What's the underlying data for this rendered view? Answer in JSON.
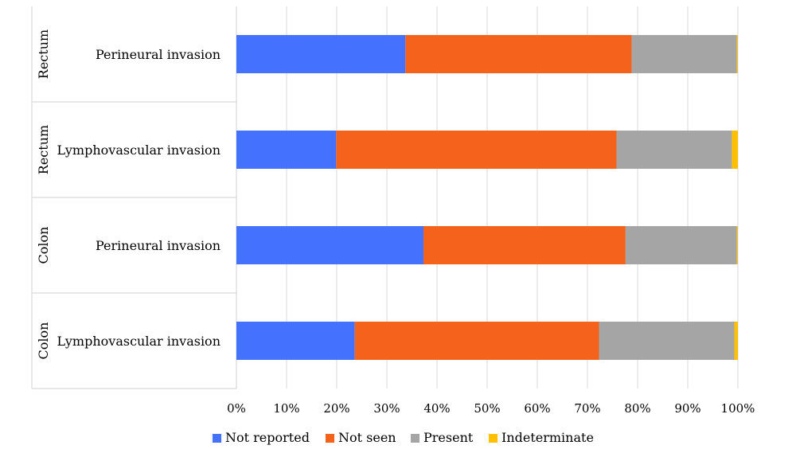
{
  "chart_data": {
    "type": "bar",
    "orientation": "horizontal",
    "stacked": "percent",
    "group_labels": [
      "Rectum",
      "Rectum",
      "Colon",
      "Colon"
    ],
    "categories": [
      "Perineural invasion",
      "Lymphovascular invasion",
      "Perineural invasion",
      "Lymphovascular invasion"
    ],
    "series": [
      {
        "name": "Not reported",
        "values": [
          33.7,
          19.9,
          37.3,
          23.6
        ]
      },
      {
        "name": "Not seen",
        "values": [
          45.1,
          55.9,
          40.3,
          48.7
        ]
      },
      {
        "name": "Present",
        "values": [
          21.0,
          23.0,
          22.2,
          27.0
        ]
      },
      {
        "name": "Indeterminate",
        "values": [
          0.2,
          1.2,
          0.2,
          0.7
        ]
      }
    ],
    "x_ticks": [
      "0%",
      "10%",
      "20%",
      "30%",
      "40%",
      "50%",
      "60%",
      "70%",
      "80%",
      "90%",
      "100%"
    ],
    "xlim": [
      0,
      100
    ],
    "colors": [
      "#4472FF",
      "#F4621B",
      "#A5A5A5",
      "#FFC000"
    ],
    "grid": "vertical",
    "legend_position": "bottom",
    "title": "",
    "xlabel": "",
    "ylabel": ""
  }
}
